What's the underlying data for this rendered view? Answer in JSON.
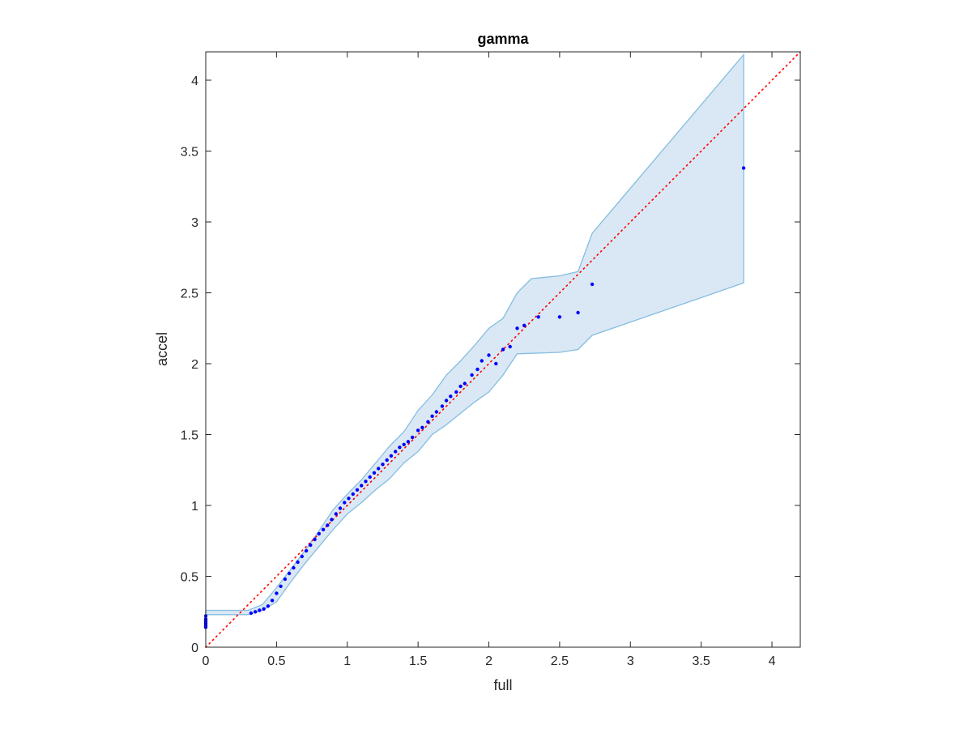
{
  "chart_data": {
    "type": "scatter",
    "title": "gamma",
    "xlabel": "full",
    "ylabel": "accel",
    "xlim": [
      0,
      4.2
    ],
    "ylim": [
      0,
      4.2
    ],
    "x_ticks": [
      "0",
      "0.5",
      "1",
      "1.5",
      "2",
      "2.5",
      "3",
      "3.5",
      "4"
    ],
    "y_ticks": [
      "0",
      "0.5",
      "1",
      "1.5",
      "2",
      "2.5",
      "3",
      "3.5",
      "4"
    ],
    "grid": false,
    "legend": "none",
    "reference_line": {
      "x": [
        0,
        4.2
      ],
      "y": [
        0,
        4.2
      ]
    },
    "confidence_band": {
      "upper": [
        [
          0,
          0.26
        ],
        [
          0.3,
          0.26
        ],
        [
          0.4,
          0.3
        ],
        [
          0.5,
          0.42
        ],
        [
          0.6,
          0.55
        ],
        [
          0.7,
          0.68
        ],
        [
          0.8,
          0.82
        ],
        [
          0.9,
          0.97
        ],
        [
          1.0,
          1.08
        ],
        [
          1.1,
          1.18
        ],
        [
          1.2,
          1.3
        ],
        [
          1.3,
          1.42
        ],
        [
          1.4,
          1.52
        ],
        [
          1.5,
          1.67
        ],
        [
          1.6,
          1.78
        ],
        [
          1.7,
          1.92
        ],
        [
          1.8,
          2.02
        ],
        [
          1.9,
          2.13
        ],
        [
          2.0,
          2.25
        ],
        [
          2.1,
          2.32
        ],
        [
          2.2,
          2.5
        ],
        [
          2.3,
          2.6
        ],
        [
          2.4,
          2.61
        ],
        [
          2.5,
          2.62
        ],
        [
          2.63,
          2.65
        ],
        [
          2.73,
          2.92
        ],
        [
          3.8,
          4.18
        ]
      ],
      "lower": [
        [
          3.8,
          2.57
        ],
        [
          2.73,
          2.2
        ],
        [
          2.63,
          2.1
        ],
        [
          2.5,
          2.08
        ],
        [
          2.2,
          2.07
        ],
        [
          2.1,
          1.92
        ],
        [
          2.0,
          1.8
        ],
        [
          1.9,
          1.73
        ],
        [
          1.8,
          1.65
        ],
        [
          1.7,
          1.57
        ],
        [
          1.6,
          1.5
        ],
        [
          1.5,
          1.38
        ],
        [
          1.4,
          1.3
        ],
        [
          1.3,
          1.19
        ],
        [
          1.2,
          1.11
        ],
        [
          1.1,
          1.02
        ],
        [
          1.0,
          0.94
        ],
        [
          0.9,
          0.83
        ],
        [
          0.8,
          0.71
        ],
        [
          0.7,
          0.59
        ],
        [
          0.6,
          0.46
        ],
        [
          0.5,
          0.32
        ],
        [
          0.4,
          0.26
        ],
        [
          0.3,
          0.23
        ],
        [
          0,
          0.23
        ]
      ]
    },
    "colors": {
      "band_fill": "#d9e8f4",
      "band_edge": "#86bde0",
      "points": "#0000ff",
      "reference": "#ff0000",
      "axes": "#262626"
    },
    "series": [
      {
        "x": [
          0,
          0,
          0,
          0,
          0,
          0,
          0,
          0,
          0.32,
          0.35,
          0.38,
          0.41,
          0.44,
          0.47,
          0.5,
          0.53,
          0.56,
          0.59,
          0.62,
          0.65,
          0.68,
          0.71,
          0.74,
          0.77,
          0.8,
          0.83,
          0.86,
          0.89,
          0.92,
          0.95,
          0.98,
          1.01,
          1.04,
          1.07,
          1.1,
          1.13,
          1.16,
          1.19,
          1.22,
          1.25,
          1.28,
          1.31,
          1.34,
          1.37,
          1.4,
          1.43,
          1.46,
          1.5,
          1.53,
          1.57,
          1.6,
          1.63,
          1.67,
          1.7,
          1.73,
          1.77,
          1.8,
          1.83,
          1.88,
          1.92,
          1.95,
          2.0,
          2.05,
          2.1,
          2.15,
          2.2,
          2.25,
          2.35,
          2.5,
          2.63,
          2.73,
          3.8
        ],
        "y": [
          0.14,
          0.15,
          0.16,
          0.17,
          0.18,
          0.19,
          0.2,
          0.22,
          0.24,
          0.25,
          0.26,
          0.27,
          0.29,
          0.33,
          0.38,
          0.43,
          0.48,
          0.52,
          0.56,
          0.6,
          0.64,
          0.68,
          0.72,
          0.76,
          0.8,
          0.83,
          0.86,
          0.9,
          0.94,
          0.98,
          1.02,
          1.05,
          1.08,
          1.11,
          1.14,
          1.17,
          1.2,
          1.23,
          1.26,
          1.29,
          1.32,
          1.35,
          1.38,
          1.41,
          1.43,
          1.45,
          1.48,
          1.53,
          1.55,
          1.59,
          1.63,
          1.66,
          1.7,
          1.74,
          1.77,
          1.8,
          1.84,
          1.86,
          1.92,
          1.96,
          2.02,
          2.06,
          2.0,
          2.1,
          2.12,
          2.25,
          2.27,
          2.33,
          2.33,
          2.36,
          2.56,
          3.38
        ]
      }
    ]
  }
}
